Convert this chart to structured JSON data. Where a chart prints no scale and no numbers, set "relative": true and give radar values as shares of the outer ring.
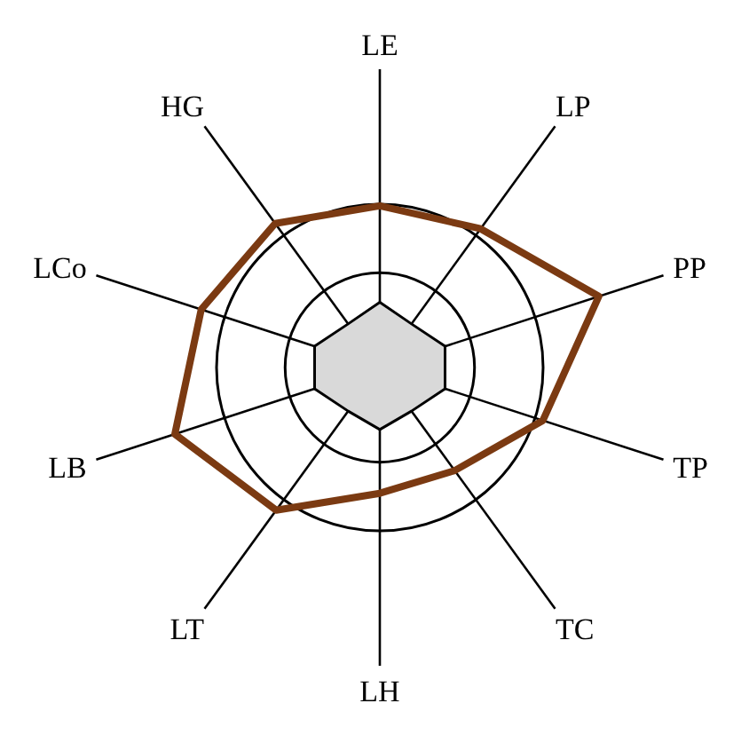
{
  "chart_data": {
    "type": "radar",
    "relative": true,
    "categories": [
      "LE",
      "LP",
      "PP",
      "TP",
      "TC",
      "LH",
      "LT",
      "LB",
      "LCo",
      "HG"
    ],
    "series": [
      {
        "color": "#7b3a12",
        "values": [
          0.99,
          1.05,
          1.41,
          1.05,
          0.78,
          0.77,
          1.08,
          1.32,
          1.15,
          1.09
        ]
      },
      {
        "color": "#d9d9d9",
        "values": [
          0.4,
          0.33,
          0.42,
          0.42,
          0.33,
          0.38,
          0.33,
          0.42,
          0.42,
          0.33
        ]
      }
    ]
  }
}
